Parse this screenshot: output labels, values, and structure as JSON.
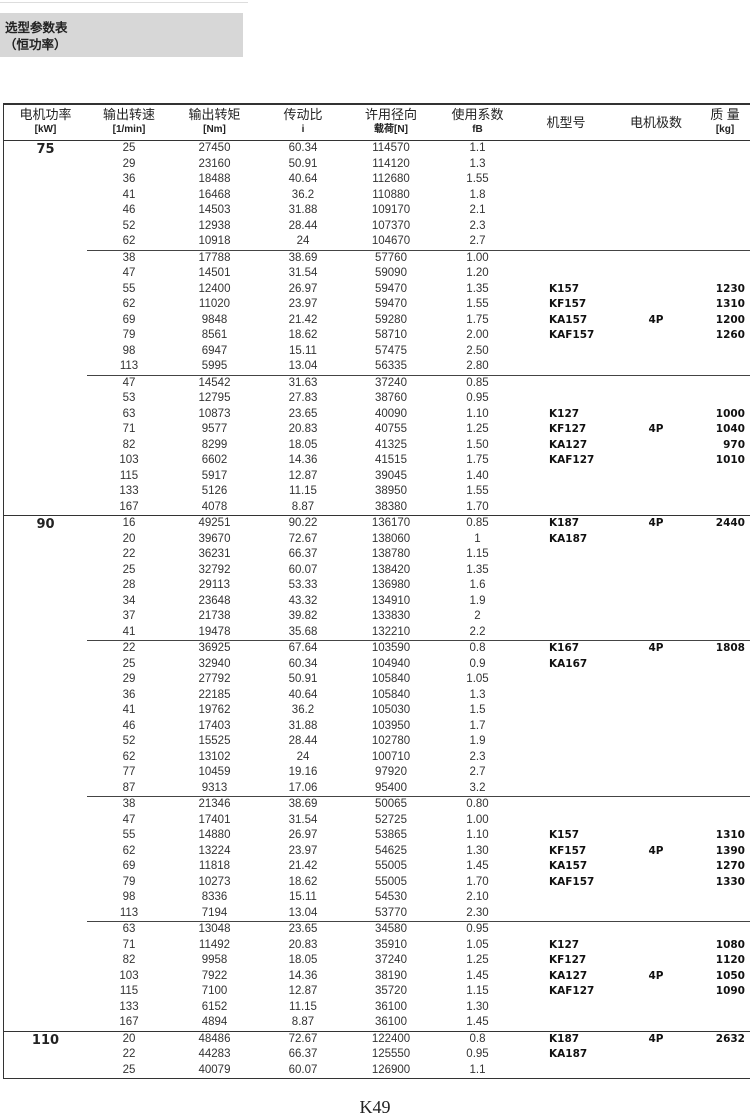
{
  "title": {
    "line1": "选型参数表",
    "line2": "（恒功率）"
  },
  "headers": [
    {
      "label": "电机功率",
      "unit": "[kW]"
    },
    {
      "label": "输出转速",
      "unit": "[1/min]"
    },
    {
      "label": "输出转矩",
      "unit": "[Nm]"
    },
    {
      "label": "传动比",
      "unit": "i"
    },
    {
      "label": "许用径向",
      "unit": "载荷[N]"
    },
    {
      "label": "使用系数",
      "unit": "fB"
    },
    {
      "label": "机型号",
      "unit": ""
    },
    {
      "label": "电机极数",
      "unit": ""
    },
    {
      "label": "质 量",
      "unit": "[kg]"
    }
  ],
  "sections": [
    {
      "power": "75",
      "groups": [
        {
          "rows": [
            [
              "25",
              "27450",
              "60.34",
              "114570",
              "1.1",
              "",
              "",
              ""
            ],
            [
              "29",
              "23160",
              "50.91",
              "114120",
              "1.3",
              "",
              "",
              ""
            ],
            [
              "36",
              "18488",
              "40.64",
              "112680",
              "1.55",
              "",
              "",
              ""
            ],
            [
              "41",
              "16468",
              "36.2",
              "110880",
              "1.8",
              "",
              "",
              ""
            ],
            [
              "46",
              "14503",
              "31.88",
              "109170",
              "2.1",
              "",
              "",
              ""
            ],
            [
              "52",
              "12938",
              "28.44",
              "107370",
              "2.3",
              "",
              "",
              ""
            ],
            [
              "62",
              "10918",
              "24",
              "104670",
              "2.7",
              "",
              "",
              ""
            ]
          ]
        },
        {
          "rows": [
            [
              "38",
              "17788",
              "38.69",
              "57760",
              "1.00",
              "",
              "",
              ""
            ],
            [
              "47",
              "14501",
              "31.54",
              "59090",
              "1.20",
              "",
              "",
              ""
            ],
            [
              "55",
              "12400",
              "26.97",
              "59470",
              "1.35",
              "K157",
              "",
              "1230"
            ],
            [
              "62",
              "11020",
              "23.97",
              "59470",
              "1.55",
              "KF157",
              "",
              "1310"
            ],
            [
              "69",
              "9848",
              "21.42",
              "59280",
              "1.75",
              "KA157",
              "4P",
              "1200"
            ],
            [
              "79",
              "8561",
              "18.62",
              "58710",
              "2.00",
              "KAF157",
              "",
              "1260"
            ],
            [
              "98",
              "6947",
              "15.11",
              "57475",
              "2.50",
              "",
              "",
              ""
            ],
            [
              "113",
              "5995",
              "13.04",
              "56335",
              "2.80",
              "",
              "",
              ""
            ]
          ]
        },
        {
          "rows": [
            [
              "47",
              "14542",
              "31.63",
              "37240",
              "0.85",
              "",
              "",
              ""
            ],
            [
              "53",
              "12795",
              "27.83",
              "38760",
              "0.95",
              "",
              "",
              ""
            ],
            [
              "63",
              "10873",
              "23.65",
              "40090",
              "1.10",
              "K127",
              "",
              "1000"
            ],
            [
              "71",
              "9577",
              "20.83",
              "40755",
              "1.25",
              "KF127",
              "4P",
              "1040"
            ],
            [
              "82",
              "8299",
              "18.05",
              "41325",
              "1.50",
              "KA127",
              "",
              "970"
            ],
            [
              "103",
              "6602",
              "14.36",
              "41515",
              "1.75",
              "KAF127",
              "",
              "1010"
            ],
            [
              "115",
              "5917",
              "12.87",
              "39045",
              "1.40",
              "",
              "",
              ""
            ],
            [
              "133",
              "5126",
              "11.15",
              "38950",
              "1.55",
              "",
              "",
              ""
            ],
            [
              "167",
              "4078",
              "8.87",
              "38380",
              "1.70",
              "",
              "",
              ""
            ]
          ]
        }
      ]
    },
    {
      "power": "90",
      "groups": [
        {
          "rows": [
            [
              "16",
              "49251",
              "90.22",
              "136170",
              "0.85",
              "K187",
              "4P",
              "2440"
            ],
            [
              "20",
              "39670",
              "72.67",
              "138060",
              "1",
              "KA187",
              "",
              ""
            ],
            [
              "22",
              "36231",
              "66.37",
              "138780",
              "1.15",
              "",
              "",
              ""
            ],
            [
              "25",
              "32792",
              "60.07",
              "138420",
              "1.35",
              "",
              "",
              ""
            ],
            [
              "28",
              "29113",
              "53.33",
              "136980",
              "1.6",
              "",
              "",
              ""
            ],
            [
              "34",
              "23648",
              "43.32",
              "134910",
              "1.9",
              "",
              "",
              ""
            ],
            [
              "37",
              "21738",
              "39.82",
              "133830",
              "2",
              "",
              "",
              ""
            ],
            [
              "41",
              "19478",
              "35.68",
              "132210",
              "2.2",
              "",
              "",
              ""
            ]
          ]
        },
        {
          "rows": [
            [
              "22",
              "36925",
              "67.64",
              "103590",
              "0.8",
              "K167",
              "4P",
              "1808"
            ],
            [
              "25",
              "32940",
              "60.34",
              "104940",
              "0.9",
              "KA167",
              "",
              ""
            ],
            [
              "29",
              "27792",
              "50.91",
              "105840",
              "1.05",
              "",
              "",
              ""
            ],
            [
              "36",
              "22185",
              "40.64",
              "105840",
              "1.3",
              "",
              "",
              ""
            ],
            [
              "41",
              "19762",
              "36.2",
              "105030",
              "1.5",
              "",
              "",
              ""
            ],
            [
              "46",
              "17403",
              "31.88",
              "103950",
              "1.7",
              "",
              "",
              ""
            ],
            [
              "52",
              "15525",
              "28.44",
              "102780",
              "1.9",
              "",
              "",
              ""
            ],
            [
              "62",
              "13102",
              "24",
              "100710",
              "2.3",
              "",
              "",
              ""
            ],
            [
              "77",
              "10459",
              "19.16",
              "97920",
              "2.7",
              "",
              "",
              ""
            ],
            [
              "87",
              "9313",
              "17.06",
              "95400",
              "3.2",
              "",
              "",
              ""
            ]
          ]
        },
        {
          "rows": [
            [
              "38",
              "21346",
              "38.69",
              "50065",
              "0.80",
              "",
              "",
              ""
            ],
            [
              "47",
              "17401",
              "31.54",
              "52725",
              "1.00",
              "",
              "",
              ""
            ],
            [
              "55",
              "14880",
              "26.97",
              "53865",
              "1.10",
              "K157",
              "",
              "1310"
            ],
            [
              "62",
              "13224",
              "23.97",
              "54625",
              "1.30",
              "KF157",
              "4P",
              "1390"
            ],
            [
              "69",
              "11818",
              "21.42",
              "55005",
              "1.45",
              "KA157",
              "",
              "1270"
            ],
            [
              "79",
              "10273",
              "18.62",
              "55005",
              "1.70",
              "KAF157",
              "",
              "1330"
            ],
            [
              "98",
              "8336",
              "15.11",
              "54530",
              "2.10",
              "",
              "",
              ""
            ],
            [
              "113",
              "7194",
              "13.04",
              "53770",
              "2.30",
              "",
              "",
              ""
            ]
          ]
        },
        {
          "rows": [
            [
              "63",
              "13048",
              "23.65",
              "34580",
              "0.95",
              "",
              "",
              ""
            ],
            [
              "71",
              "11492",
              "20.83",
              "35910",
              "1.05",
              "K127",
              "",
              "1080"
            ],
            [
              "82",
              "9958",
              "18.05",
              "37240",
              "1.25",
              "KF127",
              "",
              "1120"
            ],
            [
              "103",
              "7922",
              "14.36",
              "38190",
              "1.45",
              "KA127",
              "4P",
              "1050"
            ],
            [
              "115",
              "7100",
              "12.87",
              "35720",
              "1.15",
              "KAF127",
              "",
              "1090"
            ],
            [
              "133",
              "6152",
              "11.15",
              "36100",
              "1.30",
              "",
              "",
              ""
            ],
            [
              "167",
              "4894",
              "8.87",
              "36100",
              "1.45",
              "",
              "",
              ""
            ]
          ]
        }
      ]
    },
    {
      "power": "110",
      "groups": [
        {
          "rows": [
            [
              "20",
              "48486",
              "72.67",
              "122400",
              "0.8",
              "K187",
              "4P",
              "2632"
            ],
            [
              "22",
              "44283",
              "66.37",
              "125550",
              "0.95",
              "KA187",
              "",
              ""
            ],
            [
              "25",
              "40079",
              "60.07",
              "126900",
              "1.1",
              "",
              "",
              ""
            ]
          ]
        }
      ]
    }
  ],
  "footer": {
    "page": "K49"
  }
}
